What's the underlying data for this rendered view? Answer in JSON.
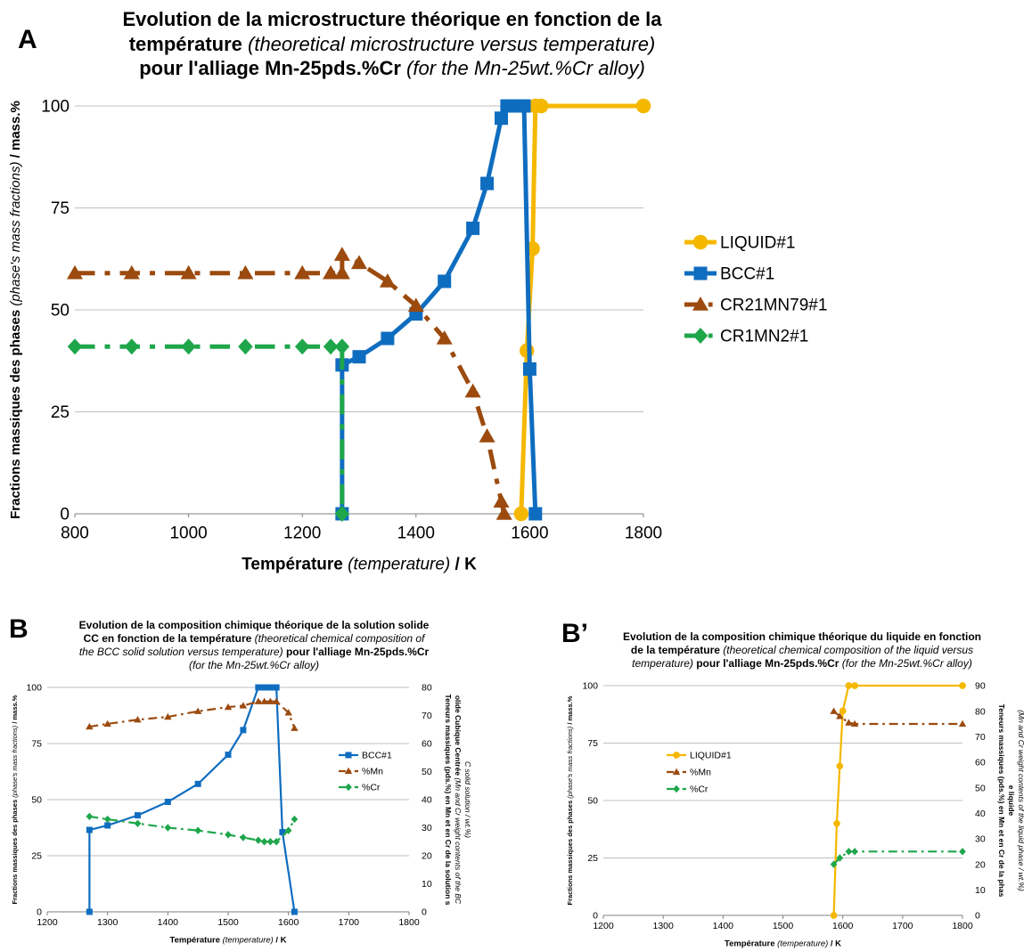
{
  "panels": {
    "a": {
      "letter": "A",
      "title_bold1": "Evolution de la microstructure théorique en fonction de la",
      "title_bold2": "température",
      "title_ital2": "(theoretical microstructure versus temperature)",
      "title_bold3": "pour l'alliage Mn-25pds.%Cr",
      "title_ital3": "(for the Mn-25wt.%Cr alloy)"
    },
    "b": {
      "letter": "B",
      "title_bold1": "Evolution de la composition chimique théorique de la solution solide",
      "title_bold2": "CC en fonction de la température",
      "title_ital2": "(theoretical chemical composition of",
      "title_ital3": "the BCC solid solution versus temperature)",
      "title_bold3": "pour l'alliage Mn-25pds.%Cr",
      "title_ital4": "(for the Mn-25wt.%Cr alloy)"
    },
    "bp": {
      "letter": "B’",
      "title_bold1": "Evolution de la composition chimique théorique du liquide en fonction",
      "title_bold2": "de la température",
      "title_ital2": "(theoretical chemical composition of the liquid versus",
      "title_ital3": "temperature)",
      "title_bold3": "pour l'alliage Mn-25pds.%Cr",
      "title_ital4": "(for the Mn-25wt.%Cr alloy)"
    }
  },
  "colors": {
    "liquid": "#F5B800",
    "bcc": "#0F6DC0",
    "mn": "#9C4A0E",
    "cr": "#1FA64B",
    "grid": "#BFBFBF"
  },
  "chart_data": [
    {
      "id": "A",
      "type": "line",
      "xlabel_bold": "Température",
      "xlabel_ital": "(temperature)",
      "xlabel_unit": "/ K",
      "ylabel_bold": "Fractions massiques des phases",
      "ylabel_ital": "(phase's mass fractions)",
      "ylabel_unit": "/ mass.%",
      "xlim": [
        800,
        1800
      ],
      "ylim": [
        0,
        100
      ],
      "xticks": [
        800,
        1000,
        1200,
        1400,
        1600,
        1800
      ],
      "yticks": [
        0,
        25,
        50,
        75,
        100
      ],
      "grid": true,
      "legend_position": "right",
      "series": [
        {
          "name": "LIQUID#1",
          "color": "liquid",
          "marker": "circle",
          "dash": "solid",
          "x": [
            1585,
            1595,
            1605,
            1610,
            1620,
            1800
          ],
          "y": [
            0,
            40,
            65,
            100,
            100,
            100
          ]
        },
        {
          "name": "BCC#1",
          "color": "bcc",
          "marker": "square",
          "dash": "solid",
          "x": [
            1270,
            1270,
            1300,
            1350,
            1400,
            1450,
            1500,
            1525,
            1550,
            1560,
            1570,
            1580,
            1590,
            1600,
            1610
          ],
          "y": [
            0,
            36.5,
            38.5,
            43,
            49,
            57,
            70,
            81,
            97,
            100,
            100,
            100,
            100,
            35.5,
            0
          ]
        },
        {
          "name": "CR21MN79#1",
          "color": "mn",
          "marker": "triangle",
          "dash": "dashdot",
          "x": [
            800,
            900,
            1000,
            1100,
            1200,
            1250,
            1270,
            1270,
            1300,
            1350,
            1400,
            1450,
            1500,
            1525,
            1550,
            1555
          ],
          "y": [
            59,
            59,
            59,
            59,
            59,
            59,
            59,
            63.5,
            61.5,
            57,
            51,
            43,
            30,
            19,
            3,
            0
          ]
        },
        {
          "name": "CR1MN2#1",
          "color": "cr",
          "marker": "diamond",
          "dash": "dashdot",
          "x": [
            800,
            900,
            1000,
            1100,
            1200,
            1250,
            1270,
            1270
          ],
          "y": [
            41,
            41,
            41,
            41,
            41,
            41,
            41,
            0
          ]
        }
      ]
    },
    {
      "id": "B",
      "type": "line",
      "xlabel_bold": "Température",
      "xlabel_ital": "(temperature)",
      "xlabel_unit": "/ K",
      "ylabel_bold": "Fractions massiques des phases",
      "ylabel_ital": "(phase's mass fractions)",
      "ylabel_unit": "/ mass.%",
      "y2label_bold": "Teneurs massiques (pds.%) en Mn et en Cr de la solution solide Cubique Centrée",
      "y2label_ital": "(Mn and Cr weight contents of the BCC solid solution / wt.%)",
      "xlim": [
        1200,
        1800
      ],
      "ylim": [
        0,
        100
      ],
      "y2lim": [
        0,
        80
      ],
      "xticks": [
        1200,
        1300,
        1400,
        1500,
        1600,
        1700,
        1800
      ],
      "yticks": [
        0,
        25,
        50,
        75,
        100
      ],
      "y2ticks": [
        0,
        10,
        20,
        30,
        40,
        50,
        60,
        70,
        80
      ],
      "grid": true,
      "legend_position": "right",
      "series": [
        {
          "name": "BCC#1",
          "color": "bcc",
          "marker": "square",
          "dash": "solid",
          "axis": "left",
          "x": [
            1270,
            1270,
            1300,
            1350,
            1400,
            1450,
            1500,
            1525,
            1550,
            1560,
            1570,
            1580,
            1590,
            1610
          ],
          "y": [
            0,
            36.5,
            38.5,
            43,
            49,
            57,
            70,
            81,
            100,
            100,
            100,
            100,
            35.5,
            0
          ]
        },
        {
          "name": "%Mn",
          "color": "mn",
          "marker": "triangle",
          "dash": "dashdot",
          "axis": "right",
          "x": [
            1270,
            1300,
            1350,
            1400,
            1450,
            1500,
            1525,
            1550,
            1560,
            1570,
            1580,
            1600,
            1610
          ],
          "y": [
            66,
            67,
            68.5,
            69.5,
            71.5,
            73,
            73.5,
            75,
            75,
            75,
            75,
            71,
            65.5
          ]
        },
        {
          "name": "%Cr",
          "color": "cr",
          "marker": "diamond",
          "dash": "dashdot",
          "axis": "right",
          "x": [
            1270,
            1300,
            1350,
            1400,
            1450,
            1500,
            1525,
            1550,
            1560,
            1570,
            1580,
            1600,
            1610
          ],
          "y": [
            34,
            33,
            31.5,
            30,
            29,
            27.5,
            26.5,
            25.5,
            25,
            25,
            25,
            29,
            33
          ]
        }
      ]
    },
    {
      "id": "B'",
      "type": "line",
      "xlabel_bold": "Température",
      "xlabel_ital": "(temperature)",
      "xlabel_unit": "/ K",
      "ylabel_bold": "Fractions massiques des phases",
      "ylabel_ital": "(phase's mass fractions)",
      "ylabel_unit": "/ mass.%",
      "y2label_bold": "Teneurs massiques (pds.%) en Mn et en Cr de la phase liquide",
      "y2label_ital": "(Mn and Cr weight contents of the liquid phase / wt.%)",
      "xlim": [
        1200,
        1800
      ],
      "ylim": [
        0,
        100
      ],
      "y2lim": [
        0,
        90
      ],
      "xticks": [
        1200,
        1300,
        1400,
        1500,
        1600,
        1700,
        1800
      ],
      "yticks": [
        0,
        25,
        50,
        75,
        100
      ],
      "y2ticks": [
        0,
        10,
        20,
        30,
        40,
        50,
        60,
        70,
        80,
        90
      ],
      "grid": true,
      "legend_position": "left",
      "series": [
        {
          "name": "LIQUID#1",
          "color": "liquid",
          "marker": "circle",
          "dash": "solid",
          "axis": "left",
          "x": [
            1585,
            1590,
            1595,
            1600,
            1610,
            1620,
            1800
          ],
          "y": [
            0,
            40,
            65,
            89,
            100,
            100,
            100
          ]
        },
        {
          "name": "%Mn",
          "color": "mn",
          "marker": "triangle",
          "dash": "dashdot",
          "axis": "right",
          "x": [
            1585,
            1595,
            1610,
            1620,
            1800
          ],
          "y": [
            80,
            78,
            75.5,
            75,
            75
          ]
        },
        {
          "name": "%Cr",
          "color": "cr",
          "marker": "diamond",
          "dash": "dashdot",
          "axis": "right",
          "x": [
            1585,
            1595,
            1610,
            1620,
            1800
          ],
          "y": [
            20,
            22.5,
            25,
            25,
            25
          ]
        }
      ]
    }
  ]
}
